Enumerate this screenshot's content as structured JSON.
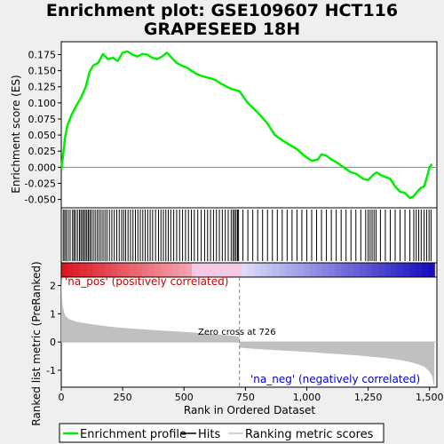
{
  "chart_data": {
    "type": "line",
    "title_line1": "Enrichment plot: GSE109607 HCT116",
    "title_line2": "GRAPESEED 18H",
    "xlabel": "Rank in Ordered Dataset",
    "ylabel_top": "Enrichment score (ES)",
    "ylabel_bottom": "Ranked list metric (PreRanked)",
    "xlim": [
      0,
      1530
    ],
    "es_ylim": [
      -0.063,
      0.195
    ],
    "metric_ylim": [
      -1.6,
      2.3
    ],
    "x_ticks": [
      0,
      250,
      500,
      750,
      1000,
      1250,
      1500
    ],
    "x_tick_labels": [
      "0",
      "250",
      "500",
      "750",
      "1,000",
      "1,250",
      "1,500"
    ],
    "es_ticks": [
      -0.05,
      -0.025,
      0.0,
      0.025,
      0.05,
      0.075,
      0.1,
      0.125,
      0.15,
      0.175
    ],
    "es_tick_labels": [
      "-0.050",
      "-0.025",
      "0.000",
      "0.025",
      "0.050",
      "0.075",
      "0.100",
      "0.125",
      "0.150",
      "0.175"
    ],
    "metric_ticks": [
      -1,
      0,
      1,
      2
    ],
    "metric_tick_labels": [
      "-1",
      "0",
      "1",
      "2"
    ],
    "n_genes": 1520,
    "zero_cross": 726,
    "zero_cross_label": "Zero cross at 726",
    "pos_label": "'na_pos' (positively correlated)",
    "neg_label": "'na_neg' (negatively correlated)",
    "enrichment_profile": {
      "x": [
        0,
        8,
        15,
        25,
        40,
        60,
        80,
        100,
        115,
        130,
        150,
        170,
        190,
        210,
        230,
        250,
        270,
        290,
        310,
        330,
        350,
        370,
        390,
        410,
        430,
        450,
        470,
        490,
        510,
        530,
        550,
        570,
        590,
        610,
        630,
        650,
        670,
        690,
        710,
        726,
        760,
        800,
        840,
        870,
        900,
        930,
        960,
        990,
        1020,
        1045,
        1060,
        1080,
        1100,
        1120,
        1150,
        1180,
        1200,
        1230,
        1250,
        1270,
        1285,
        1300,
        1320,
        1340,
        1360,
        1380,
        1400,
        1420,
        1435,
        1450,
        1465,
        1478,
        1490,
        1500,
        1510
      ],
      "y": [
        -0.003,
        0.02,
        0.045,
        0.065,
        0.08,
        0.095,
        0.108,
        0.125,
        0.148,
        0.158,
        0.162,
        0.176,
        0.168,
        0.17,
        0.165,
        0.178,
        0.18,
        0.175,
        0.172,
        0.176,
        0.175,
        0.17,
        0.168,
        0.172,
        0.178,
        0.17,
        0.162,
        0.158,
        0.155,
        0.15,
        0.145,
        0.142,
        0.14,
        0.138,
        0.135,
        0.13,
        0.126,
        0.122,
        0.12,
        0.118,
        0.1,
        0.085,
        0.068,
        0.05,
        0.042,
        0.035,
        0.028,
        0.018,
        0.01,
        0.012,
        0.02,
        0.018,
        0.012,
        0.008,
        0.0,
        -0.008,
        -0.01,
        -0.018,
        -0.02,
        -0.012,
        -0.008,
        -0.012,
        -0.015,
        -0.018,
        -0.03,
        -0.038,
        -0.04,
        -0.048,
        -0.045,
        -0.038,
        -0.032,
        -0.03,
        -0.015,
        0.0,
        0.005
      ]
    },
    "hits": [
      8,
      14,
      20,
      28,
      36,
      46,
      52,
      58,
      66,
      74,
      80,
      86,
      92,
      98,
      104,
      110,
      116,
      122,
      130,
      138,
      146,
      154,
      162,
      170,
      178,
      186,
      196,
      206,
      216,
      226,
      236,
      246,
      254,
      262,
      272,
      282,
      292,
      302,
      312,
      322,
      332,
      342,
      352,
      362,
      372,
      384,
      396,
      406,
      416,
      426,
      436,
      446,
      458,
      470,
      482,
      494,
      506,
      518,
      530,
      542,
      556,
      570,
      584,
      596,
      608,
      620,
      632,
      644,
      656,
      668,
      680,
      692,
      700,
      706,
      712,
      718,
      722,
      740,
      760,
      780,
      800,
      820,
      840,
      860,
      880,
      900,
      920,
      940,
      960,
      980,
      1000,
      1020,
      1040,
      1060,
      1080,
      1100,
      1120,
      1140,
      1160,
      1180,
      1200,
      1220,
      1240,
      1250,
      1258,
      1266,
      1274,
      1282,
      1300,
      1320,
      1340,
      1360,
      1380,
      1400,
      1420,
      1436,
      1446,
      1456,
      1466,
      1478,
      1488,
      1498,
      1506
    ],
    "metric_profile": {
      "x": [
        0,
        5,
        15,
        30,
        60,
        100,
        150,
        200,
        300,
        400,
        500,
        600,
        700,
        725,
        726,
        800,
        900,
        1000,
        1100,
        1200,
        1300,
        1350,
        1400,
        1450,
        1480,
        1500,
        1510,
        1515,
        1520
      ],
      "y": [
        2.3,
        1.3,
        0.95,
        0.82,
        0.72,
        0.66,
        0.6,
        0.54,
        0.47,
        0.41,
        0.36,
        0.3,
        0.22,
        0.18,
        -0.2,
        -0.25,
        -0.3,
        -0.35,
        -0.41,
        -0.47,
        -0.55,
        -0.6,
        -0.67,
        -0.78,
        -0.88,
        -1.05,
        -1.2,
        -1.4,
        -1.6
      ]
    },
    "colors": {
      "es_line": "#00ee00",
      "hit_line": "#000000",
      "metric_fill": "#c0c0c0",
      "pos_text": "#cc0000",
      "neg_text": "#0000cc",
      "zero_line": "#808080"
    }
  },
  "legend": {
    "items": [
      {
        "label": "Enrichment profile",
        "color": "#00ee00",
        "kind": "es"
      },
      {
        "label": "Hits",
        "color": "#000000",
        "kind": "hits"
      },
      {
        "label": "Ranking metric scores",
        "color": "#c0c0c0",
        "kind": "metric"
      }
    ]
  }
}
